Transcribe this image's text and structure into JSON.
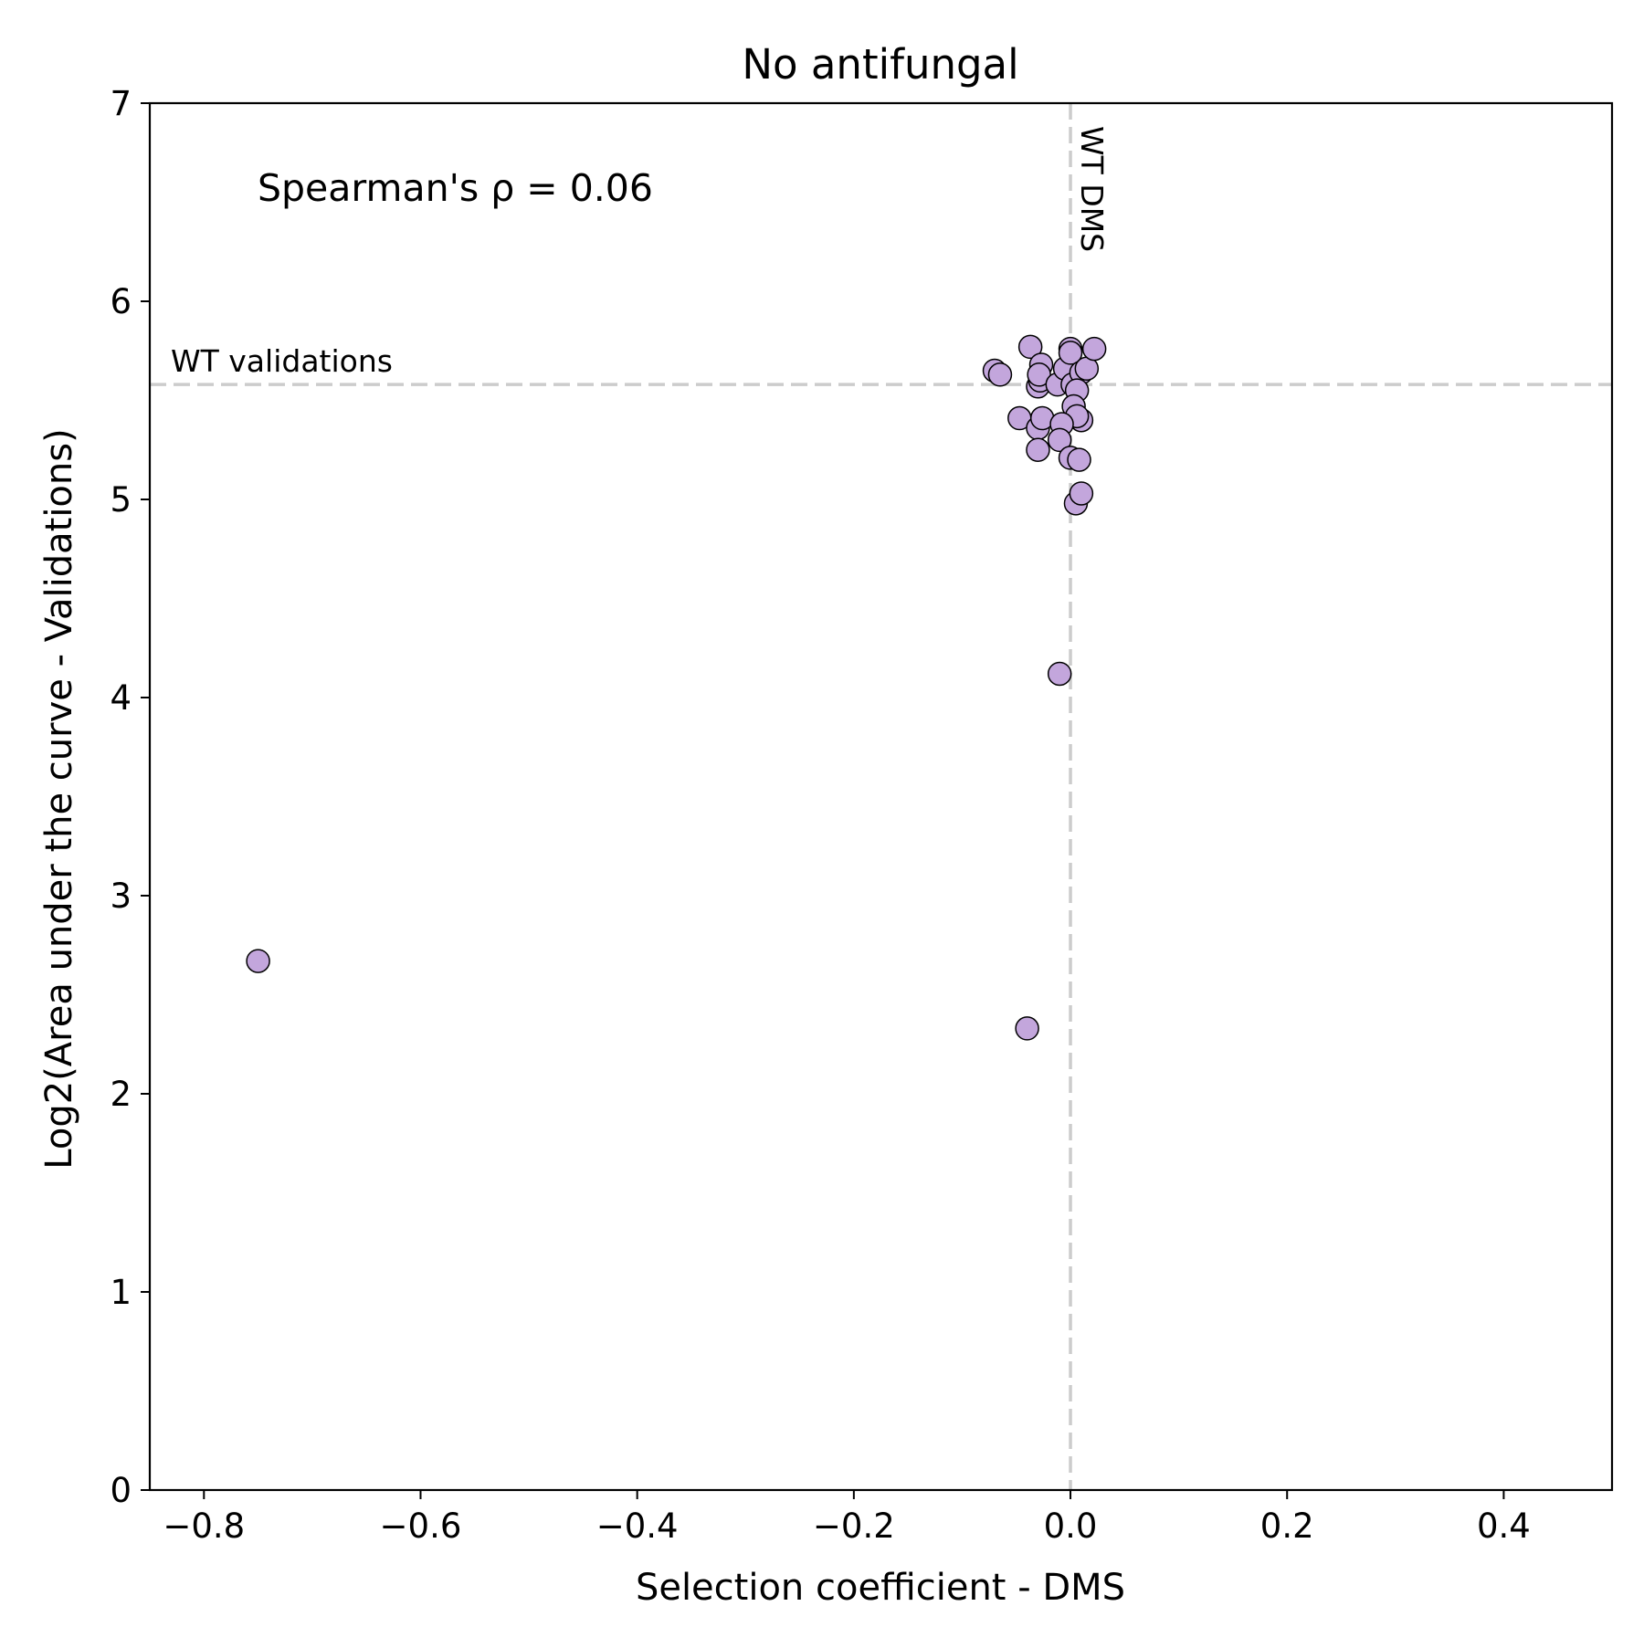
{
  "chart_data": {
    "type": "scatter",
    "title": "No antifungal",
    "xlabel": "Selection coefficient - DMS",
    "ylabel": "Log2(Area under the curve - Validations)",
    "xlim": [
      -0.85,
      0.5
    ],
    "ylim": [
      0,
      7
    ],
    "xticks": [
      -0.8,
      -0.6,
      -0.4,
      -0.2,
      0.0,
      0.2,
      0.4
    ],
    "xtick_labels": [
      "−0.8",
      "−0.6",
      "−0.4",
      "−0.2",
      "0.0",
      "0.2",
      "0.4"
    ],
    "yticks": [
      0,
      1,
      2,
      3,
      4,
      5,
      6,
      7
    ],
    "ytick_labels": [
      "0",
      "1",
      "2",
      "3",
      "4",
      "5",
      "6",
      "7"
    ],
    "grid": false,
    "annotation": "Spearman's ρ = 0.06",
    "reference_lines": [
      {
        "orientation": "horizontal",
        "value": 5.58,
        "label": "WT validations"
      },
      {
        "orientation": "vertical",
        "value": 0.0,
        "label": "WT DMS"
      }
    ],
    "marker_color": "#c3a6dc",
    "marker_edge_color": "#000000",
    "refline_color": "#cccccc",
    "points": [
      {
        "x": -0.75,
        "y": 2.67
      },
      {
        "x": -0.04,
        "y": 2.33
      },
      {
        "x": -0.01,
        "y": 4.12
      },
      {
        "x": -0.07,
        "y": 5.65
      },
      {
        "x": -0.065,
        "y": 5.63
      },
      {
        "x": -0.037,
        "y": 5.77
      },
      {
        "x": -0.027,
        "y": 5.68
      },
      {
        "x": -0.03,
        "y": 5.57
      },
      {
        "x": -0.028,
        "y": 5.6
      },
      {
        "x": -0.029,
        "y": 5.63
      },
      {
        "x": -0.012,
        "y": 5.58
      },
      {
        "x": -0.005,
        "y": 5.66
      },
      {
        "x": 0.0,
        "y": 5.76
      },
      {
        "x": 0.0,
        "y": 5.74
      },
      {
        "x": 0.002,
        "y": 5.58
      },
      {
        "x": 0.01,
        "y": 5.64
      },
      {
        "x": 0.015,
        "y": 5.66
      },
      {
        "x": 0.022,
        "y": 5.76
      },
      {
        "x": 0.006,
        "y": 5.55
      },
      {
        "x": 0.003,
        "y": 5.47
      },
      {
        "x": 0.01,
        "y": 5.4
      },
      {
        "x": 0.006,
        "y": 5.42
      },
      {
        "x": -0.047,
        "y": 5.41
      },
      {
        "x": -0.03,
        "y": 5.36
      },
      {
        "x": -0.026,
        "y": 5.41
      },
      {
        "x": -0.008,
        "y": 5.38
      },
      {
        "x": -0.01,
        "y": 5.3
      },
      {
        "x": -0.03,
        "y": 5.25
      },
      {
        "x": 0.0,
        "y": 5.21
      },
      {
        "x": 0.008,
        "y": 5.2
      },
      {
        "x": 0.005,
        "y": 4.98
      },
      {
        "x": 0.01,
        "y": 5.03
      }
    ]
  }
}
